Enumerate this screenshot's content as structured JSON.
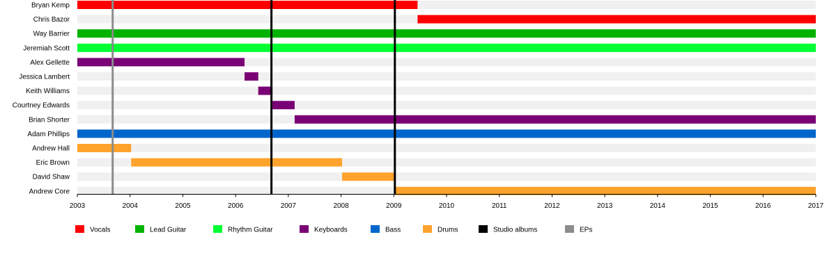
{
  "chart_data": {
    "type": "timeline",
    "x_range": [
      2003,
      2017
    ],
    "x_ticks": [
      "2003",
      "2004",
      "2005",
      "2006",
      "2007",
      "2008",
      "2009",
      "2010",
      "2011",
      "2012",
      "2013",
      "2014",
      "2015",
      "2016",
      "2017"
    ],
    "members": [
      {
        "name": "Bryan Kemp",
        "spans": [
          {
            "start": 2003.0,
            "end": 2009.45,
            "role": "vocals"
          }
        ]
      },
      {
        "name": "Chris Bazor",
        "spans": [
          {
            "start": 2009.45,
            "end": 2017.0,
            "role": "vocals"
          }
        ]
      },
      {
        "name": "Way Barrier",
        "spans": [
          {
            "start": 2003.0,
            "end": 2017.0,
            "role": "lead_guitar"
          }
        ]
      },
      {
        "name": "Jeremiah Scott",
        "spans": [
          {
            "start": 2003.0,
            "end": 2017.0,
            "role": "rhythm_guitar"
          }
        ]
      },
      {
        "name": "Alex Gellette",
        "spans": [
          {
            "start": 2003.0,
            "end": 2006.17,
            "role": "keyboards"
          }
        ]
      },
      {
        "name": "Jessica Lambert",
        "spans": [
          {
            "start": 2006.17,
            "end": 2006.43,
            "role": "keyboards"
          }
        ]
      },
      {
        "name": "Keith Williams",
        "spans": [
          {
            "start": 2006.43,
            "end": 2006.7,
            "role": "keyboards"
          }
        ]
      },
      {
        "name": "Courtney Edwards",
        "spans": [
          {
            "start": 2006.7,
            "end": 2007.12,
            "role": "keyboards"
          }
        ]
      },
      {
        "name": "Brian Shorter",
        "spans": [
          {
            "start": 2007.12,
            "end": 2017.0,
            "role": "keyboards"
          }
        ]
      },
      {
        "name": "Adam Phillips",
        "spans": [
          {
            "start": 2003.0,
            "end": 2017.0,
            "role": "bass"
          }
        ]
      },
      {
        "name": "Andrew Hall",
        "spans": [
          {
            "start": 2003.0,
            "end": 2004.02,
            "role": "drums"
          }
        ]
      },
      {
        "name": "Eric Brown",
        "spans": [
          {
            "start": 2004.02,
            "end": 2008.02,
            "role": "drums"
          }
        ]
      },
      {
        "name": "David Shaw",
        "spans": [
          {
            "start": 2008.02,
            "end": 2009.02,
            "role": "drums"
          }
        ]
      },
      {
        "name": "Andrew Core",
        "spans": [
          {
            "start": 2009.02,
            "end": 2017.0,
            "role": "drums"
          }
        ]
      }
    ],
    "markers": [
      {
        "year": 2003.67,
        "kind": "eps"
      },
      {
        "year": 2006.68,
        "kind": "studio_albums"
      },
      {
        "year": 2009.02,
        "kind": "studio_albums"
      }
    ],
    "legend": [
      {
        "key": "vocals",
        "label": "Vocals",
        "color": "#ff0000"
      },
      {
        "key": "lead_guitar",
        "label": "Lead Guitar",
        "color": "#00b300"
      },
      {
        "key": "rhythm_guitar",
        "label": "Rhythm Guitar",
        "color": "#00ff33"
      },
      {
        "key": "keyboards",
        "label": "Keyboards",
        "color": "#7a0075"
      },
      {
        "key": "bass",
        "label": "Bass",
        "color": "#0066cc"
      },
      {
        "key": "drums",
        "label": "Drums",
        "color": "#ffa32d"
      },
      {
        "key": "studio_albums",
        "label": "Studio albums",
        "color": "#000000"
      },
      {
        "key": "eps",
        "label": "EPs",
        "color": "#8c8c8c"
      }
    ]
  }
}
